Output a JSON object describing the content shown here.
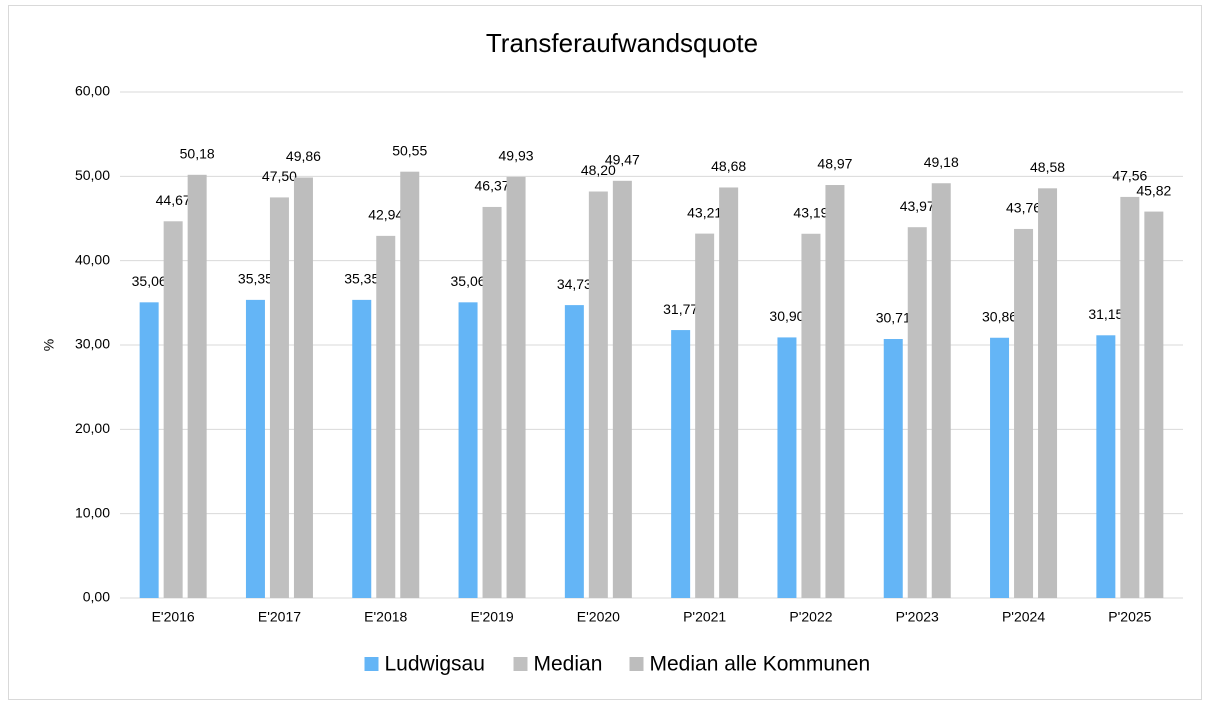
{
  "chart_data": {
    "type": "bar",
    "title": "Transferaufwandsquote",
    "y_label": "%",
    "categories": [
      "E'2016",
      "E'2017",
      "E'2018",
      "E'2019",
      "E'2020",
      "P'2021",
      "P'2022",
      "P'2023",
      "P'2024",
      "P'2025"
    ],
    "series": [
      {
        "name": "Ludwigsau",
        "color": "#64b5f6",
        "values": [
          35.06,
          35.35,
          35.35,
          35.06,
          34.73,
          31.77,
          30.9,
          30.71,
          30.86,
          31.15
        ],
        "value_labels": [
          "35,06",
          "35,35",
          "35,35",
          "35,06",
          "34,73",
          "31,77",
          "30,90",
          "30,71",
          "30,86",
          "31,15"
        ]
      },
      {
        "name": "Median",
        "color": "#c0c0c0",
        "values": [
          44.67,
          47.5,
          42.94,
          46.37,
          48.2,
          43.21,
          43.19,
          43.97,
          43.76,
          47.56
        ],
        "value_labels": [
          "44,67",
          "47,50",
          "42,94",
          "46,37",
          "48,20",
          "43,21",
          "43,19",
          "43,97",
          "43,76",
          "47,56"
        ]
      },
      {
        "name": "Median alle Kommunen",
        "color": "#bdbdbd",
        "values": [
          50.18,
          49.86,
          50.55,
          49.93,
          49.47,
          48.68,
          48.97,
          49.18,
          48.58,
          45.82
        ],
        "value_labels": [
          "50,18",
          "49,86",
          "50,55",
          "49,93",
          "49,47",
          "48,68",
          "48,97",
          "49,18",
          "48,58",
          "45,82"
        ]
      }
    ],
    "ylim": [
      0,
      60
    ],
    "yticks": [
      {
        "value": 0,
        "label": "0,00"
      },
      {
        "value": 10,
        "label": "10,00"
      },
      {
        "value": 20,
        "label": "20,00"
      },
      {
        "value": 30,
        "label": "30,00"
      },
      {
        "value": 40,
        "label": "40,00"
      },
      {
        "value": 50,
        "label": "50,00"
      },
      {
        "value": 60,
        "label": "60,00"
      }
    ],
    "grid": true,
    "legend": "bottom"
  }
}
